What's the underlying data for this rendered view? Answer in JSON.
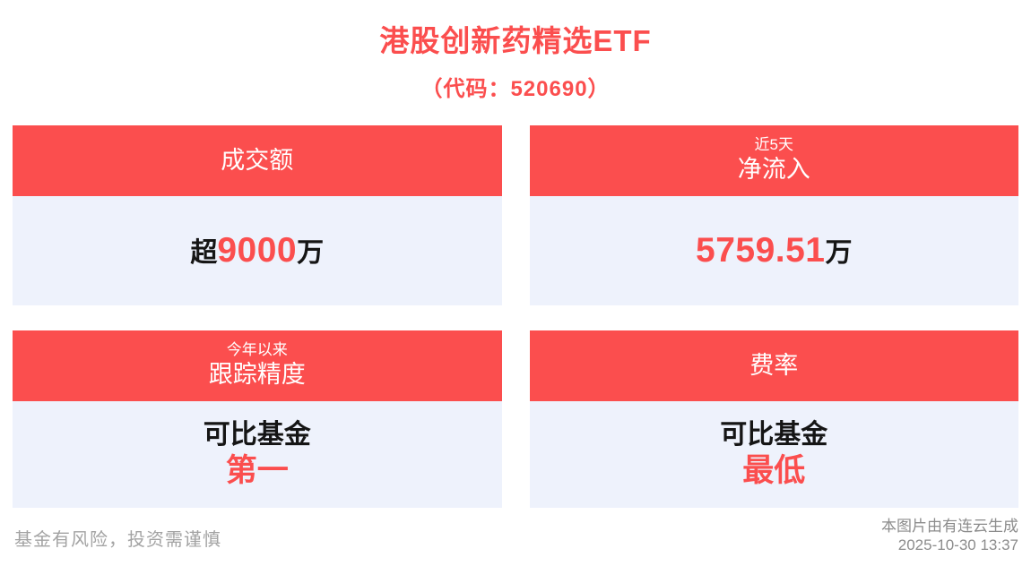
{
  "header": {
    "title": "港股创新药精选ETF",
    "subtitle": "（代码：520690）"
  },
  "cards": [
    {
      "id": "turnover",
      "header_lines": [
        "成交额"
      ],
      "value_lines": [
        [
          {
            "text": "超",
            "red": false
          },
          {
            "text": "9000",
            "red": true
          },
          {
            "text": "万",
            "red": false
          }
        ]
      ]
    },
    {
      "id": "net-inflow-5d",
      "header_lines": [
        "近5天",
        "净流入"
      ],
      "value_lines": [
        [
          {
            "text": "5759.51",
            "red": true
          },
          {
            "text": "万",
            "red": false
          }
        ]
      ]
    },
    {
      "id": "tracking-accuracy",
      "header_lines": [
        "今年以来",
        "跟踪精度"
      ],
      "value_lines": [
        [
          {
            "text": "可比基金",
            "red": false
          }
        ],
        [
          {
            "text": "第一",
            "red": true
          }
        ]
      ]
    },
    {
      "id": "fee-rate",
      "header_lines": [
        "费率"
      ],
      "value_lines": [
        [
          {
            "text": "可比基金",
            "red": false
          }
        ],
        [
          {
            "text": "最低",
            "red": true
          }
        ]
      ]
    }
  ],
  "footer": {
    "disclaimer": "基金有风险，投资需谨慎",
    "credit": "本图片由有连云生成",
    "timestamp": "2025-10-30 13:37"
  },
  "colors": {
    "accent": "#fb4e4e",
    "card_body_bg": "#eef2fc",
    "text_dark": "#151515",
    "muted_gray": "#9a9a9a"
  }
}
